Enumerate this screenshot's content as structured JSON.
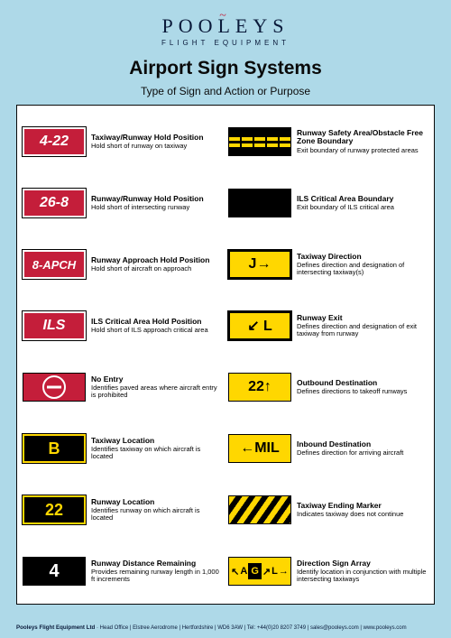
{
  "brand": {
    "name": "POOLEYS",
    "tagline": "FLIGHT EQUIPMENT",
    "bird_glyph": "~",
    "brand_color": "#0a1a3a",
    "accent_color": "#c41e3a"
  },
  "page": {
    "background_color": "#aed9e8",
    "title": "Airport Sign Systems",
    "subtitle": "Type of Sign and Action or Purpose"
  },
  "colors": {
    "red": "#c41e3a",
    "yellow": "#ffd700",
    "black": "#000000",
    "white": "#ffffff"
  },
  "left": [
    {
      "sign_text": "4-22",
      "sign_style": "red",
      "title": "Taxiway/Runway Hold Position",
      "text": "Hold short of runway on taxiway"
    },
    {
      "sign_text": "26-8",
      "sign_style": "red",
      "title": "Runway/Runway Hold Position",
      "text": "Hold short of intersecting runway"
    },
    {
      "sign_text": "8-APCH",
      "sign_style": "red-sm",
      "title": "Runway Approach Hold Position",
      "text": "Hold short of aircraft on approach"
    },
    {
      "sign_text": "ILS",
      "sign_style": "red",
      "title": "ILS Critical Area Hold Position",
      "text": "Hold short of ILS approach critical area"
    },
    {
      "sign_text": "",
      "sign_style": "noentry",
      "title": "No Entry",
      "text": "Identifies paved areas where aircraft entry is prohibited"
    },
    {
      "sign_text": "B",
      "sign_style": "black",
      "title": "Taxiway Location",
      "text": "Identifies taxiway on which aircraft is located"
    },
    {
      "sign_text": "22",
      "sign_style": "black",
      "title": "Runway Location",
      "text": "Identifies runway on which aircraft is located"
    },
    {
      "sign_text": "4",
      "sign_style": "blackplain",
      "title": "Runway Distance Remaining",
      "text": "Provides remaining runway length in 1,000 ft increments"
    }
  ],
  "right": [
    {
      "sign_text": "",
      "sign_style": "dashes",
      "title": "Runway Safety Area/Obstacle Free Zone Boundary",
      "text": "Exit boundary of runway protected areas"
    },
    {
      "sign_text": "",
      "sign_style": "bars",
      "title": "ILS Critical Area Boundary",
      "text": "Exit boundary of ILS critical area"
    },
    {
      "sign_text": "J→",
      "sign_style": "yellowbdr",
      "title": "Taxiway Direction",
      "text": "Defines direction and designation of intersecting taxiway(s)"
    },
    {
      "sign_text": "↙ L",
      "sign_style": "yellowbdr",
      "title": "Runway Exit",
      "text": "Defines direction and designation of exit taxiway from runway"
    },
    {
      "sign_text": "22↑",
      "sign_style": "yellow",
      "title": "Outbound Destination",
      "text": "Defines directions to takeoff runways"
    },
    {
      "sign_text": "←MIL",
      "sign_style": "yellow",
      "title": "Inbound Destination",
      "text": "Defines direction for arriving aircraft"
    },
    {
      "sign_text": "",
      "sign_style": "hatch",
      "title": "Taxiway Ending Marker",
      "text": "Indicates taxiway does not continue"
    },
    {
      "sign_text": "",
      "sign_style": "array",
      "array": [
        "↖",
        "A",
        "G",
        "↗",
        "L",
        "→"
      ],
      "black_index": 2,
      "title": "Direction Sign Array",
      "text": "Identify location in conjunction with multiple intersecting taxiways"
    }
  ],
  "footer": {
    "company": "Pooleys Flight Equipment Ltd",
    "rest": " · Head Office | Elstree Aerodrome | Hertfordshire | WD6 3AW | Tel: +44(0)20 8207 3749 | sales@pooleys.com | www.pooleys.com"
  }
}
